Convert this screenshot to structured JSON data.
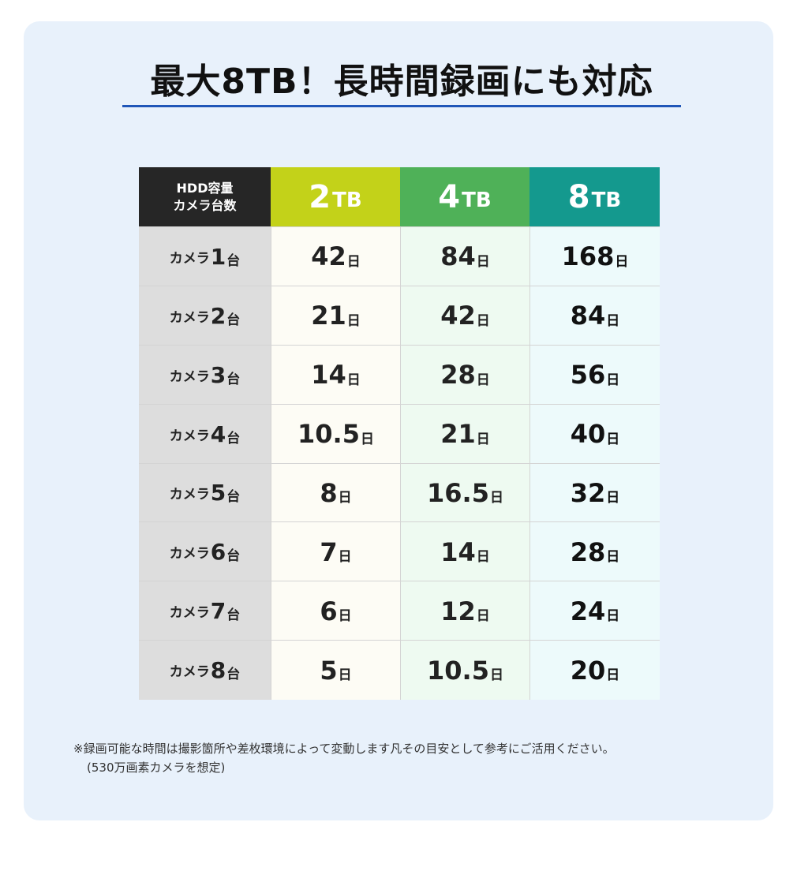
{
  "title": "最大8TB！長時間録画にも対応",
  "table": {
    "header_label_line1": "HDD容量",
    "header_label_line2": "カメラ台数",
    "columns": [
      {
        "num": "2",
        "unit": "TB",
        "color": "#c3d219"
      },
      {
        "num": "4",
        "unit": "TB",
        "color": "#4fb158"
      },
      {
        "num": "8",
        "unit": "TB",
        "color": "#14998e"
      }
    ],
    "row_prefix": "カメラ",
    "row_suffix": "台",
    "day_unit": "日",
    "rows": [
      {
        "n": "1",
        "values": [
          "42",
          "84",
          "168"
        ]
      },
      {
        "n": "2",
        "values": [
          "21",
          "42",
          "84"
        ]
      },
      {
        "n": "3",
        "values": [
          "14",
          "28",
          "56"
        ]
      },
      {
        "n": "4",
        "values": [
          "10.5",
          "21",
          "40"
        ]
      },
      {
        "n": "5",
        "values": [
          "8",
          "16.5",
          "32"
        ]
      },
      {
        "n": "6",
        "values": [
          "7",
          "14",
          "28"
        ]
      },
      {
        "n": "7",
        "values": [
          "6",
          "12",
          "24"
        ]
      },
      {
        "n": "8",
        "values": [
          "5",
          "10.5",
          "20"
        ]
      }
    ]
  },
  "note": {
    "line1": "※録画可能な時間は撮影箇所や差枚環境によって変動します凡その目安として参考にご活用ください。",
    "line2": "(530万画素カメラを想定)"
  },
  "colors": {
    "card_bg": "#e8f1fb",
    "title_underline": "#1f56b8",
    "header_dark": "#262626"
  }
}
